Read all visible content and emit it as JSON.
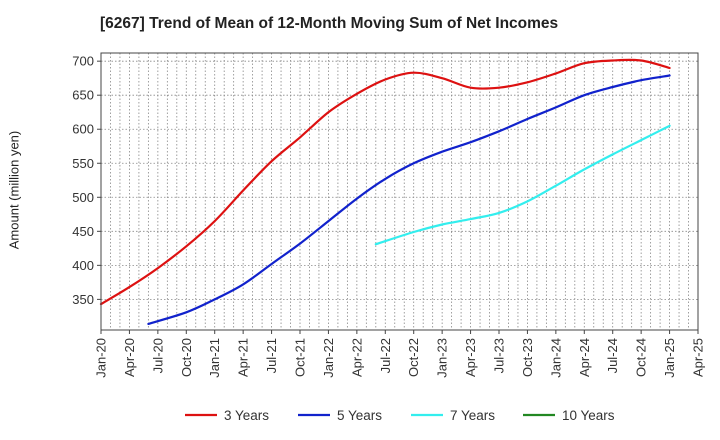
{
  "chart_data": {
    "type": "line",
    "title": "[6267]  Trend of Mean of 12-Month Moving Sum of Net Incomes",
    "ylabel": "Amount (million yen)",
    "xlabel": "",
    "x_ticks": [
      "Jan-20",
      "Apr-20",
      "Jul-20",
      "Oct-20",
      "Jan-21",
      "Apr-21",
      "Jul-21",
      "Oct-21",
      "Jan-22",
      "Apr-22",
      "Jul-22",
      "Oct-22",
      "Jan-23",
      "Apr-23",
      "Jul-23",
      "Oct-23",
      "Jan-24",
      "Apr-24",
      "Jul-24",
      "Oct-24",
      "Jan-25",
      "Apr-25"
    ],
    "y_ticks": [
      350,
      400,
      450,
      500,
      550,
      600,
      650,
      700
    ],
    "ylim": [
      305,
      712
    ],
    "grid": true,
    "legend_position": "bottom",
    "series": [
      {
        "name": "3 Years",
        "color": "#dd1111",
        "points": [
          [
            "Jan-20",
            343
          ],
          [
            "Apr-20",
            368
          ],
          [
            "Jul-20",
            396
          ],
          [
            "Oct-20",
            428
          ],
          [
            "Jan-21",
            465
          ],
          [
            "Apr-21",
            510
          ],
          [
            "Jul-21",
            553
          ],
          [
            "Oct-21",
            588
          ],
          [
            "Jan-22",
            625
          ],
          [
            "Apr-22",
            652
          ],
          [
            "Jul-22",
            673
          ],
          [
            "Oct-22",
            683
          ],
          [
            "Jan-23",
            675
          ],
          [
            "Apr-23",
            661
          ],
          [
            "Jul-23",
            661
          ],
          [
            "Oct-23",
            669
          ],
          [
            "Jan-24",
            682
          ],
          [
            "Apr-24",
            697
          ],
          [
            "Jul-24",
            701
          ],
          [
            "Oct-24",
            701
          ],
          [
            "Jan-25",
            690
          ]
        ]
      },
      {
        "name": "5 Years",
        "color": "#1122cc",
        "points": [
          [
            "Jun-20",
            314
          ],
          [
            "Oct-20",
            331
          ],
          [
            "Jan-21",
            350
          ],
          [
            "Apr-21",
            372
          ],
          [
            "Jul-21",
            402
          ],
          [
            "Oct-21",
            432
          ],
          [
            "Jan-22",
            465
          ],
          [
            "Apr-22",
            498
          ],
          [
            "Jul-22",
            527
          ],
          [
            "Oct-22",
            550
          ],
          [
            "Jan-23",
            567
          ],
          [
            "Apr-23",
            581
          ],
          [
            "Jul-23",
            597
          ],
          [
            "Oct-23",
            615
          ],
          [
            "Jan-24",
            632
          ],
          [
            "Apr-24",
            650
          ],
          [
            "Jul-24",
            662
          ],
          [
            "Oct-24",
            672
          ],
          [
            "Jan-25",
            679
          ]
        ]
      },
      {
        "name": "7 Years",
        "color": "#33eeee",
        "points": [
          [
            "Jun-22",
            431
          ],
          [
            "Oct-22",
            449
          ],
          [
            "Jan-23",
            460
          ],
          [
            "Apr-23",
            468
          ],
          [
            "Jul-23",
            477
          ],
          [
            "Oct-23",
            494
          ],
          [
            "Jan-24",
            517
          ],
          [
            "Apr-24",
            541
          ],
          [
            "Jul-24",
            563
          ],
          [
            "Oct-24",
            584
          ],
          [
            "Jan-25",
            605
          ]
        ]
      },
      {
        "name": "10 Years",
        "color": "#228822",
        "points": []
      }
    ]
  }
}
